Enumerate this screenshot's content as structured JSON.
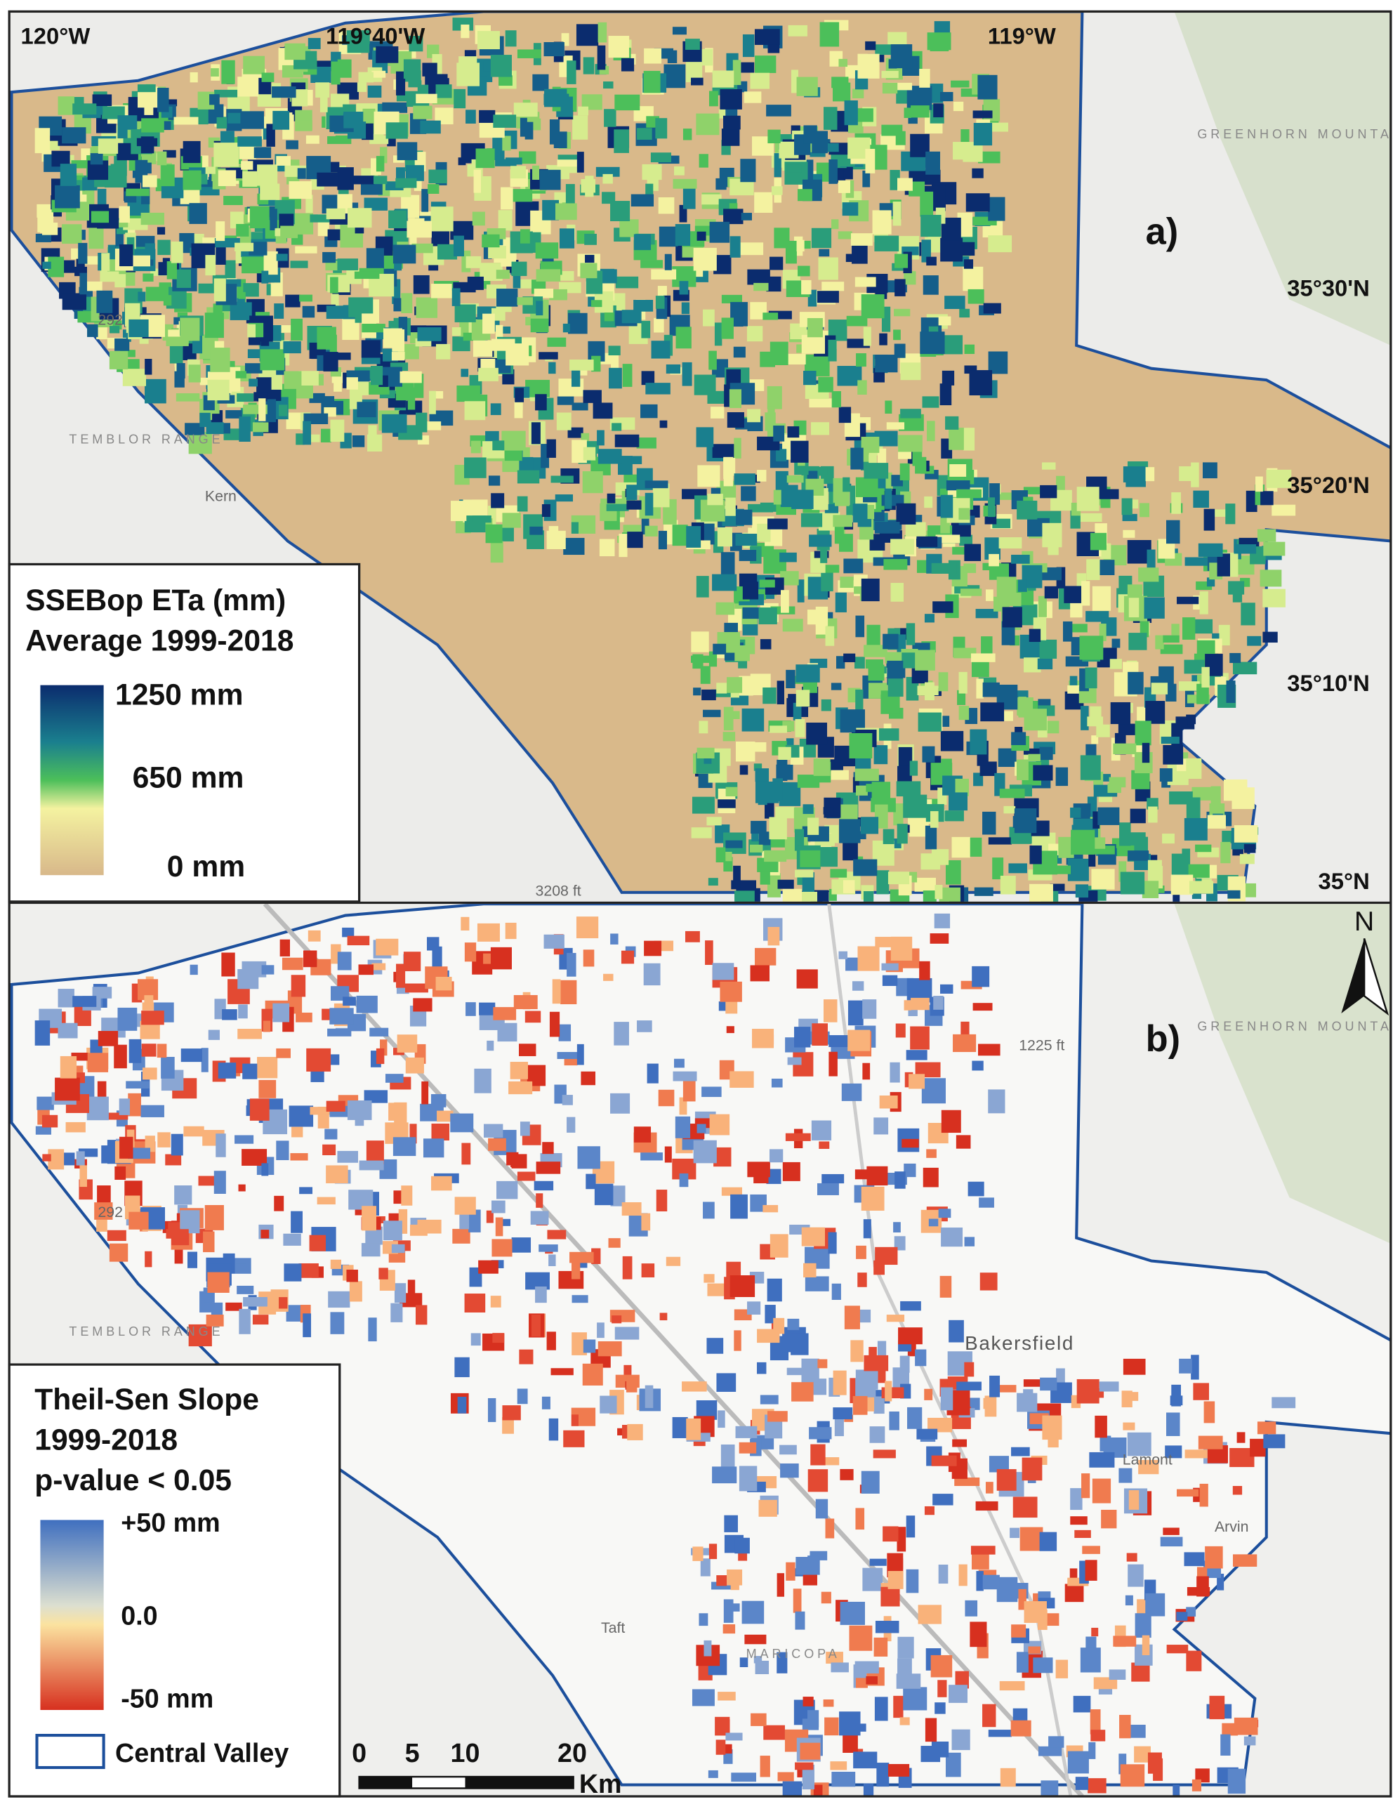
{
  "panel_a": {
    "label": "a)",
    "longitudes": [
      "120°W",
      "119°40'W",
      "119°W"
    ],
    "latitudes": [
      "35°30'N",
      "35°20'N",
      "35°10'N",
      "35°N"
    ],
    "places": [
      "GREENHORN MOUNTA",
      "TEMBLOR RANGE",
      "Kern",
      "292",
      "3208 ft"
    ],
    "legend": {
      "title": [
        "SSEBop ETa (mm)",
        "Average 1999-2018"
      ],
      "labels": [
        "1250 mm",
        "650 mm",
        "0 mm"
      ]
    }
  },
  "panel_b": {
    "label": "b)",
    "north": "N",
    "places": [
      "GREENHORN MOUNTA",
      "TEMBLOR RANGE",
      "1225 ft",
      "Bakersfield",
      "Lamont",
      "Taft",
      "MARICOPA",
      "292",
      "Arvin"
    ],
    "legend": {
      "title": [
        "Theil-Sen Slope",
        "1999-2018",
        "p-value < 0.05"
      ],
      "labels": [
        "+50 mm",
        "0.0",
        "-50 mm"
      ],
      "boundary": "Central Valley"
    },
    "scale_bar": {
      "ticks": [
        "0",
        "5",
        "10",
        "20"
      ],
      "unit": "Km"
    }
  }
}
